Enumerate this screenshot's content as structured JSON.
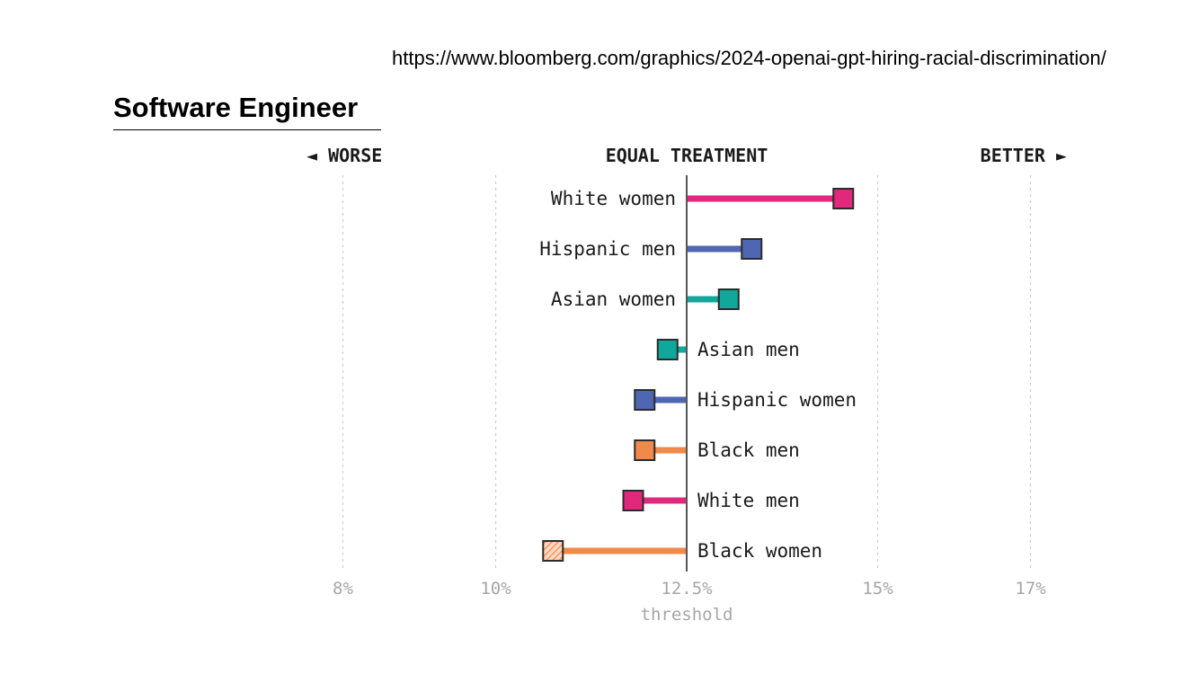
{
  "source_url": "https://www.bloomberg.com/graphics/2024-openai-gpt-hiring-racial-discrimination/",
  "title": "Software Engineer",
  "chart_data": {
    "type": "dot",
    "title": "Software Engineer",
    "header_left": "◄ WORSE",
    "header_center": "EQUAL TREATMENT",
    "header_right": "BETTER ►",
    "xlim": [
      7.5,
      17.5
    ],
    "baseline": 12.5,
    "baseline_label": "threshold",
    "ticks": [
      {
        "value": 8,
        "label": "8%"
      },
      {
        "value": 10,
        "label": "10%"
      },
      {
        "value": 12.5,
        "label": "12.5%"
      },
      {
        "value": 15,
        "label": "15%"
      },
      {
        "value": 17,
        "label": "17%"
      }
    ],
    "grid": true,
    "rows": [
      {
        "label": "White women",
        "value": 14.55,
        "color": "#e0287c"
      },
      {
        "label": "Hispanic men",
        "value": 13.35,
        "color": "#4f67b2"
      },
      {
        "label": "Asian women",
        "value": 13.05,
        "color": "#0fa89a"
      },
      {
        "label": "Asian men",
        "value": 12.25,
        "color": "#0fa89a"
      },
      {
        "label": "Hispanic women",
        "value": 11.95,
        "color": "#4f67b2"
      },
      {
        "label": "Black men",
        "value": 11.95,
        "color": "#f08a4b"
      },
      {
        "label": "White men",
        "value": 11.8,
        "color": "#e0287c"
      },
      {
        "label": "Black women",
        "value": 10.75,
        "color": "#f08a4b",
        "hatched": true
      }
    ]
  }
}
